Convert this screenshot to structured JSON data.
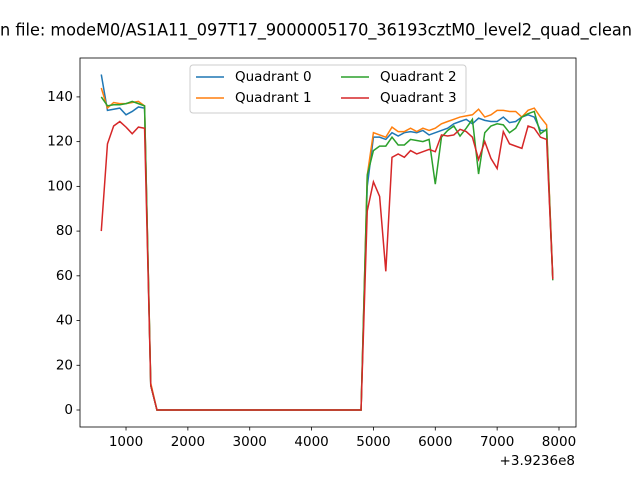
{
  "chart_data": {
    "type": "line",
    "title": "n file: modeM0/AS1A11_097T17_9000005170_36193cztM0_level2_quad_clean",
    "x_offset_label": "+3.9236e8",
    "x": [
      600,
      700,
      800,
      900,
      1000,
      1100,
      1200,
      1300,
      1400,
      1500,
      1600,
      1700,
      1800,
      1900,
      2000,
      2100,
      2200,
      2300,
      2400,
      2500,
      2600,
      2700,
      2800,
      2900,
      3000,
      3100,
      3200,
      3300,
      3400,
      3500,
      3600,
      3700,
      3800,
      3900,
      4000,
      4100,
      4200,
      4300,
      4400,
      4500,
      4600,
      4700,
      4800,
      4900,
      5000,
      5100,
      5200,
      5300,
      5400,
      5500,
      5600,
      5700,
      5800,
      5900,
      6000,
      6100,
      6200,
      6300,
      6400,
      6500,
      6600,
      6700,
      6800,
      6900,
      7000,
      7100,
      7200,
      7300,
      7400,
      7500,
      7600,
      7700,
      7800,
      7900
    ],
    "series": [
      {
        "name": "Quadrant 0",
        "color": "#1f77b4",
        "values": [
          150,
          134,
          134.5,
          135,
          132,
          133.5,
          135.5,
          135,
          11,
          0,
          0,
          0,
          0,
          0,
          0,
          0,
          0,
          0,
          0,
          0,
          0,
          0,
          0,
          0,
          0,
          0,
          0,
          0,
          0,
          0,
          0,
          0,
          0,
          0,
          0,
          0,
          0,
          0,
          0,
          0,
          0,
          0,
          0,
          100,
          122,
          122,
          121,
          124,
          122.5,
          124,
          124.5,
          124,
          125,
          123,
          124,
          125,
          126,
          128,
          129,
          130,
          128,
          130.5,
          129.5,
          129,
          129,
          131,
          128.5,
          129,
          131,
          132,
          131,
          125,
          125,
          59
        ]
      },
      {
        "name": "Quadrant 1",
        "color": "#ff7f0e",
        "values": [
          144,
          135,
          137.5,
          137,
          137,
          137.5,
          138,
          136,
          12,
          0,
          0,
          0,
          0,
          0,
          0,
          0,
          0,
          0,
          0,
          0,
          0,
          0,
          0,
          0,
          0,
          0,
          0,
          0,
          0,
          0,
          0,
          0,
          0,
          0,
          0,
          0,
          0,
          0,
          0,
          0,
          0,
          0,
          0,
          105,
          124,
          123,
          122,
          126.5,
          124.5,
          124.5,
          126,
          124.5,
          126,
          125,
          126,
          128,
          129,
          130,
          131,
          131.5,
          132,
          134.5,
          131,
          132,
          134,
          134,
          133.5,
          133.5,
          131,
          134,
          135,
          131,
          127.5,
          59
        ]
      },
      {
        "name": "Quadrant 2",
        "color": "#2ca02c",
        "values": [
          140,
          136,
          136.5,
          136.5,
          137,
          138,
          137,
          136,
          11,
          0,
          0,
          0,
          0,
          0,
          0,
          0,
          0,
          0,
          0,
          0,
          0,
          0,
          0,
          0,
          0,
          0,
          0,
          0,
          0,
          0,
          0,
          0,
          0,
          0,
          0,
          0,
          0,
          0,
          0,
          0,
          0,
          0,
          0,
          105,
          116,
          118,
          118,
          122,
          118.5,
          118.5,
          121,
          120.5,
          120,
          121,
          101,
          122,
          125,
          127,
          122.5,
          126,
          130,
          105.5,
          124,
          127,
          128,
          127.5,
          124,
          126,
          131,
          132.5,
          133.5,
          123.5,
          125.5,
          58
        ]
      },
      {
        "name": "Quadrant 3",
        "color": "#d62728",
        "values": [
          80,
          119,
          127,
          129,
          126.5,
          123.5,
          126.5,
          126,
          11,
          0,
          0,
          0,
          0,
          0,
          0,
          0,
          0,
          0,
          0,
          0,
          0,
          0,
          0,
          0,
          0,
          0,
          0,
          0,
          0,
          0,
          0,
          0,
          0,
          0,
          0,
          0,
          0,
          0,
          0,
          0,
          0,
          0,
          0,
          89,
          102,
          95.5,
          62,
          113,
          114.5,
          113,
          116,
          114.5,
          115.5,
          116.5,
          115.5,
          123,
          122.5,
          123,
          125.5,
          124.5,
          122,
          112,
          120,
          112.5,
          108,
          124.5,
          119,
          118,
          117,
          127,
          126,
          122,
          121,
          58.5
        ]
      }
    ],
    "xlim": [
      256,
      8275
    ],
    "xticks": [
      1000,
      2000,
      3000,
      4000,
      5000,
      6000,
      7000,
      8000
    ],
    "ylim": [
      -7.6,
      157.4
    ],
    "yticks": [
      0,
      20,
      40,
      60,
      80,
      100,
      120,
      140
    ],
    "legend": "upper center",
    "legend_columns": 2
  }
}
